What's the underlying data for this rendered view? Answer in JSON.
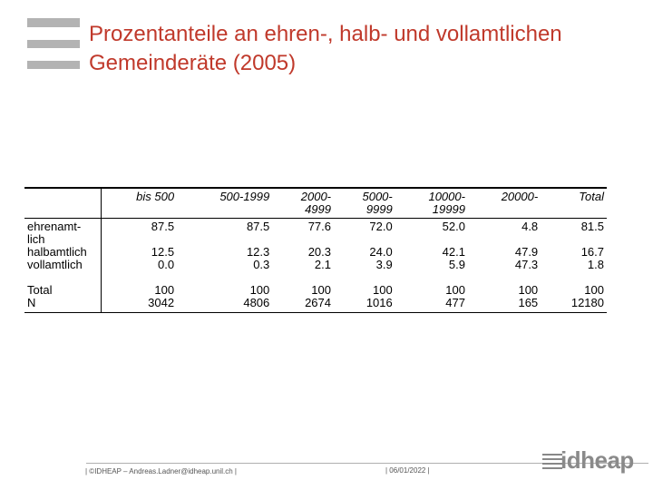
{
  "title": {
    "line1": "Prozentanteile an ehren-, halb- und vollamtlichen",
    "line2": "Gemeinderäte (2005)"
  },
  "table": {
    "headers": [
      [
        "bis 500"
      ],
      [
        "500-1999"
      ],
      [
        "2000-",
        "4999"
      ],
      [
        "5000-",
        "9999"
      ],
      [
        "10000-",
        "19999"
      ],
      [
        "20000-"
      ],
      [
        "Total"
      ]
    ],
    "rows": [
      {
        "label": [
          "ehrenamt-",
          "lich"
        ],
        "values": [
          "87.5",
          "87.5",
          "77.6",
          "72.0",
          "52.0",
          "4.8",
          "81.5"
        ]
      },
      {
        "label": [
          "halbamtlich"
        ],
        "values": [
          "12.5",
          "12.3",
          "20.3",
          "24.0",
          "42.1",
          "47.9",
          "16.7"
        ]
      },
      {
        "label": [
          "vollamtlich"
        ],
        "values": [
          "0.0",
          "0.3",
          "2.1",
          "3.9",
          "5.9",
          "47.3",
          "1.8"
        ]
      },
      {
        "label": [
          "Total"
        ],
        "values": [
          "100",
          "100",
          "100",
          "100",
          "100",
          "100",
          "100"
        ]
      },
      {
        "label": [
          "N"
        ],
        "values": [
          "3042",
          "4806",
          "2674",
          "1016",
          "477",
          "165",
          "12180"
        ]
      }
    ]
  },
  "footer": {
    "left": "| ©IDHEAP – Andreas.Ladner@idheap.unil.ch |",
    "date": "| 06/01/2022 |",
    "logo_text": "idheap"
  },
  "colors": {
    "title": "#c0392b",
    "bars": "#b3b3b3",
    "logo": "#8a8a8a"
  }
}
